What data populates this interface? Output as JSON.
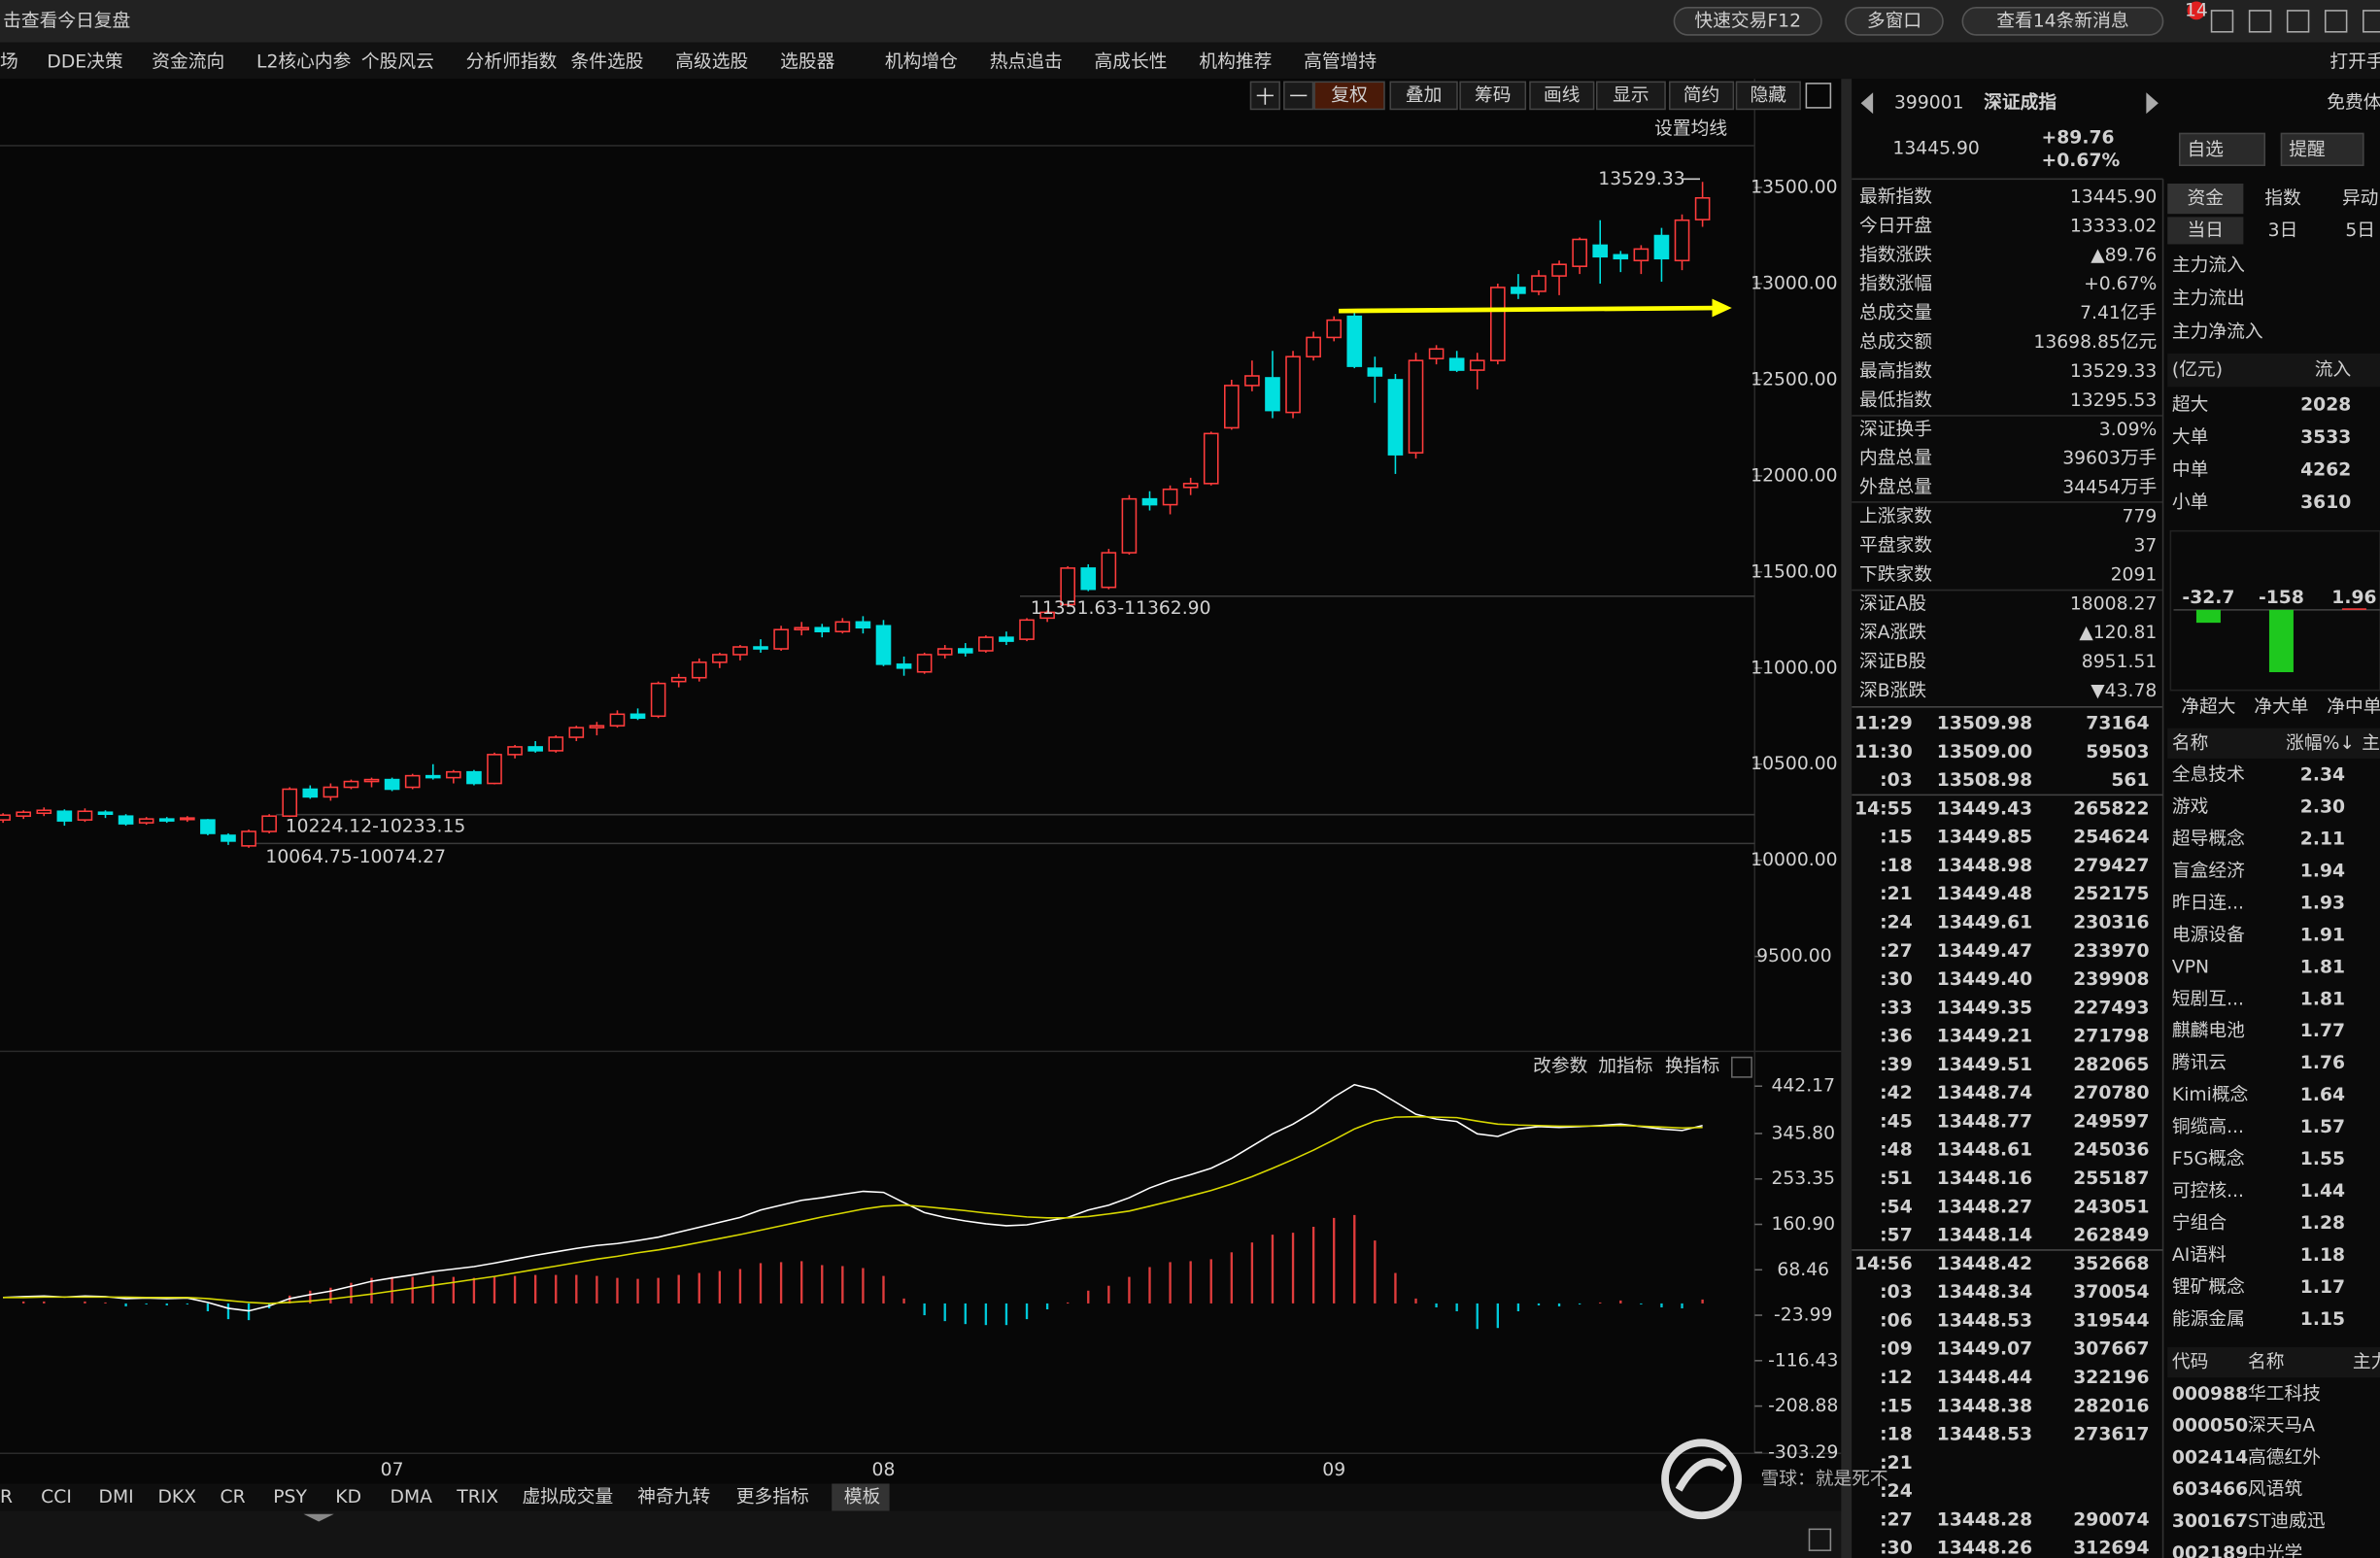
{
  "top_bar": {
    "review": "击查看今日复盘",
    "buttons": [
      "快速交易F12",
      "多窗口",
      "查看14条新消息"
    ],
    "badge": "14"
  },
  "menu": {
    "items": [
      "场",
      "DDE决策",
      "资金流向",
      "L2核心内参",
      "个股风云",
      "分析师指数",
      "条件选股",
      "高级选股",
      "选股器",
      "机构增仓",
      "热点追击",
      "高成长性",
      "机构推荐",
      "高管增持"
    ],
    "right": "打开手"
  },
  "chart_toolbar": {
    "buttons": [
      "复权",
      "叠加",
      "筹码",
      "画线",
      "显示",
      "简约",
      "隐藏"
    ],
    "ma_setting": "设置均线"
  },
  "chart_data": [
    {
      "type": "candlestick",
      "up_color": "#ff3c3c",
      "down_color": "#00e0e0",
      "categories": [
        null,
        null,
        null,
        null,
        null,
        null,
        null,
        null,
        null,
        null,
        null,
        null,
        null,
        null,
        null,
        null,
        null,
        null,
        null,
        "07",
        null,
        null,
        null,
        null,
        null,
        null,
        null,
        null,
        null,
        null,
        null,
        null,
        null,
        null,
        null,
        null,
        null,
        null,
        null,
        null,
        null,
        null,
        null,
        "08",
        null,
        null,
        null,
        null,
        null,
        null,
        null,
        null,
        null,
        null,
        null,
        null,
        null,
        null,
        null,
        null,
        null,
        null,
        null,
        null,
        null,
        "09",
        null,
        null,
        null,
        null,
        null,
        null,
        null,
        null,
        null,
        null,
        null,
        null,
        null,
        null,
        null,
        null,
        null,
        null
      ],
      "open": [
        10210,
        10230,
        10245,
        10255,
        10210,
        10250,
        10230,
        10195,
        10215,
        10215,
        10210,
        10130,
        10075,
        10150,
        10230,
        10370,
        10330,
        10380,
        10410,
        10420,
        10380,
        10440,
        10430,
        10460,
        10400,
        10550,
        10590,
        10570,
        10640,
        10690,
        10700,
        10760,
        10750,
        10930,
        10950,
        11030,
        11070,
        11110,
        11100,
        11200,
        11210,
        11190,
        11240,
        11220,
        11020,
        10980,
        11070,
        11100,
        11090,
        11160,
        11150,
        11260,
        11330,
        11520,
        11420,
        11600,
        11880,
        11850,
        11940,
        11960,
        12250,
        12470,
        12510,
        12330,
        12620,
        12720,
        12830,
        12560,
        12500,
        12120,
        12610,
        12610,
        12550,
        12600,
        12980,
        12960,
        13040,
        13090,
        13200,
        13150,
        13120,
        13250,
        13120,
        13333.02
      ],
      "high": [
        10245,
        10260,
        10275,
        10265,
        10270,
        10260,
        10240,
        10225,
        10225,
        10230,
        10215,
        10140,
        10160,
        10240,
        10380,
        10390,
        10400,
        10420,
        10430,
        10430,
        10450,
        10500,
        10470,
        10470,
        10560,
        10600,
        10620,
        10650,
        10700,
        10720,
        10780,
        10790,
        10930,
        10970,
        11050,
        11080,
        11120,
        11150,
        11220,
        11240,
        11230,
        11260,
        11270,
        11250,
        11060,
        11080,
        11120,
        11130,
        11170,
        11190,
        11260,
        11300,
        11530,
        11540,
        11620,
        11900,
        11920,
        11950,
        11990,
        12230,
        12500,
        12600,
        12650,
        12650,
        12750,
        12830,
        12860,
        12620,
        12530,
        12640,
        12680,
        12650,
        12640,
        13000,
        13050,
        13070,
        13120,
        13240,
        13330,
        13170,
        13200,
        13290,
        13360,
        13529.33
      ],
      "low": [
        10195,
        10215,
        10230,
        10180,
        10200,
        10220,
        10180,
        10185,
        10195,
        10200,
        10130,
        10080,
        10065,
        10140,
        10225,
        10320,
        10310,
        10370,
        10380,
        10360,
        10370,
        10420,
        10400,
        10390,
        10395,
        10530,
        10560,
        10560,
        10620,
        10650,
        10690,
        10730,
        10740,
        10900,
        10930,
        11000,
        11040,
        11080,
        11090,
        11170,
        11160,
        11180,
        11180,
        11010,
        10960,
        10970,
        11050,
        11060,
        11080,
        11120,
        11140,
        11240,
        11320,
        11400,
        11410,
        11590,
        11820,
        11800,
        11900,
        11950,
        12240,
        12440,
        12300,
        12300,
        12600,
        12700,
        12560,
        12380,
        12010,
        12090,
        12580,
        12540,
        12450,
        12580,
        12920,
        12940,
        12940,
        13050,
        13000,
        13060,
        13050,
        13010,
        13070,
        13295.53
      ],
      "close": [
        10235,
        10250,
        10260,
        10205,
        10255,
        10240,
        10190,
        10215,
        10205,
        10220,
        10140,
        10100,
        10150,
        10230,
        10370,
        10330,
        10380,
        10410,
        10420,
        10370,
        10440,
        10430,
        10460,
        10400,
        10550,
        10590,
        10570,
        10640,
        10690,
        10700,
        10760,
        10740,
        10920,
        10950,
        11030,
        11070,
        11110,
        11100,
        11200,
        11210,
        11190,
        11240,
        11210,
        11020,
        11000,
        11070,
        11100,
        11080,
        11160,
        11140,
        11250,
        11290,
        11520,
        11410,
        11600,
        11880,
        11850,
        11930,
        11960,
        12220,
        12470,
        12520,
        12340,
        12620,
        12720,
        12810,
        12570,
        12520,
        12110,
        12600,
        12660,
        12550,
        12600,
        12980,
        12950,
        13040,
        13100,
        13230,
        13140,
        13130,
        13180,
        13130,
        13330,
        13445.9
      ],
      "ylim": [
        9030,
        13710
      ],
      "yticks": [
        {
          "value": 13500,
          "label": "13500.00"
        },
        {
          "value": 13000,
          "label": "13000.00"
        },
        {
          "value": 12500,
          "label": "12500.00"
        },
        {
          "value": 12000,
          "label": "12000.00"
        },
        {
          "value": 11500,
          "label": "11500.00"
        },
        {
          "value": 11000,
          "label": "11000.00"
        },
        {
          "value": 10500,
          "label": "10500.00"
        },
        {
          "value": 10000,
          "label": "10000.00"
        },
        {
          "value": 9500,
          "label": "9500.00"
        }
      ],
      "annotations": [
        "13529.33",
        "11351.63-11362.90",
        "10224.12-10233.15",
        "10064.75-10074.27"
      ]
    },
    {
      "type": "macd",
      "up_color": "#e03c3c",
      "down_color": "#00c8d8",
      "series": [
        {
          "color": "#ffffff",
          "values": [
            12,
            14,
            15,
            13,
            15,
            14,
            10,
            11,
            10,
            11,
            2,
            -10,
            -15,
            -5,
            10,
            18,
            25,
            35,
            45,
            52,
            58,
            65,
            70,
            75,
            82,
            90,
            98,
            105,
            112,
            118,
            122,
            128,
            135,
            145,
            155,
            165,
            175,
            190,
            200,
            210,
            215,
            222,
            228,
            226,
            205,
            185,
            175,
            168,
            162,
            158,
            160,
            168,
            175,
            190,
            200,
            215,
            235,
            250,
            262,
            275,
            295,
            320,
            345,
            365,
            390,
            420,
            445,
            435,
            410,
            385,
            375,
            370,
            345,
            340,
            355,
            360,
            358,
            360,
            362,
            365,
            360,
            355,
            352,
            362
          ]
        },
        {
          "color": "#d8d800",
          "values": [
            12,
            12,
            13,
            13,
            13,
            13,
            13,
            12,
            12,
            12,
            10,
            6,
            2,
            0,
            2,
            5,
            9,
            14,
            19,
            25,
            31,
            37,
            43,
            49,
            55,
            62,
            69,
            76,
            83,
            90,
            96,
            103,
            109,
            116,
            124,
            132,
            140,
            149,
            158,
            167,
            176,
            184,
            192,
            198,
            200,
            197,
            193,
            189,
            184,
            180,
            176,
            174,
            174,
            177,
            182,
            188,
            198,
            208,
            219,
            230,
            243,
            258,
            275,
            293,
            312,
            333,
            355,
            371,
            379,
            380,
            379,
            378,
            371,
            365,
            363,
            362,
            361,
            361,
            361,
            362,
            361,
            359,
            357,
            358
          ]
        }
      ],
      "histogram": [
        0,
        4,
        4,
        0,
        4,
        2,
        -6,
        -2,
        -4,
        -2,
        -16,
        -32,
        -34,
        -10,
        16,
        26,
        32,
        42,
        52,
        54,
        54,
        56,
        54,
        52,
        54,
        56,
        58,
        58,
        58,
        56,
        52,
        50,
        52,
        58,
        62,
        66,
        70,
        82,
        84,
        86,
        78,
        76,
        72,
        56,
        10,
        -24,
        -36,
        -42,
        -44,
        -44,
        -32,
        -12,
        2,
        26,
        36,
        54,
        74,
        84,
        86,
        90,
        104,
        124,
        140,
        144,
        156,
        174,
        180,
        128,
        62,
        10,
        -8,
        -16,
        -52,
        -50,
        -16,
        -4,
        -6,
        -2,
        2,
        6,
        -2,
        -8,
        -10,
        8
      ],
      "ylim": [
        -305,
        476
      ],
      "yticks": [
        442.17,
        {
          "value": 345.8,
          "label": "345.80"
        },
        253.35,
        {
          "value": 160.9,
          "label": "160.90"
        },
        68.46,
        -23.99,
        -116.43,
        -208.88,
        -303.29
      ]
    },
    {
      "type": "bar",
      "up_color": "#ff3c3c",
      "down_color": "#1ec81e",
      "categories": [
        "净超大",
        "净大单",
        "净中单"
      ],
      "values": [
        -32.7,
        -158,
        1.96
      ]
    }
  ],
  "indicator_toolbar": [
    "改参数",
    "加指标",
    "换指标"
  ],
  "indicator_tabs": [
    "R",
    "CCI",
    "DMI",
    "DKX",
    "CR",
    "PSY",
    "KD",
    "DMA",
    "TRIX",
    "虚拟成交量",
    "神奇九转",
    "更多指标",
    "模板"
  ],
  "quote": {
    "code": "399001",
    "name": "深证成指",
    "price": "13445.90",
    "change": "+89.76",
    "pct": "+0.67%",
    "buttons": [
      "自选",
      "提醒"
    ],
    "promo": "免费体",
    "rows": [
      {
        "label": "最新指数",
        "value": "13445.90",
        "color": "#ff3c3c"
      },
      {
        "label": "今日开盘",
        "value": "13333.02",
        "color": "#22d722"
      },
      {
        "label": "指数涨跌",
        "value": "▲89.76",
        "color": "#ff3c3c"
      },
      {
        "label": "指数涨幅",
        "value": "+0.67%",
        "color": "#ff3c3c"
      },
      {
        "label": "总成交量",
        "value": "7.41亿手",
        "color": "#e6e6e6"
      },
      {
        "label": "总成交额",
        "value": "13698.85亿元",
        "color": "#00c8ff"
      },
      {
        "label": "最高指数",
        "value": "13529.33",
        "color": "#ff3c3c"
      },
      {
        "label": "最低指数",
        "value": "13295.53",
        "color": "#22d722"
      },
      {
        "label": "深证换手",
        "value": "3.09%",
        "color": "#e6e6e6"
      },
      {
        "label": "内盘总量",
        "value": "39603万手",
        "color": "#22d722"
      },
      {
        "label": "外盘总量",
        "value": "34454万手",
        "color": "#ff3c3c"
      },
      {
        "label": "上涨家数",
        "value": "779",
        "color": "#ff3c3c"
      },
      {
        "label": "平盘家数",
        "value": "37",
        "color": "#e6e6e6"
      },
      {
        "label": "下跌家数",
        "value": "2091",
        "color": "#22d722"
      },
      {
        "label": "深证A股",
        "value": "18008.27",
        "color": "#ff3c3c"
      },
      {
        "label": "深A涨跌",
        "value": "▲120.81",
        "color": "#ff3c3c"
      },
      {
        "label": "深证B股",
        "value": "8951.51",
        "color": "#22d722"
      },
      {
        "label": "深B涨跌",
        "value": "▼43.78",
        "color": "#22d722"
      }
    ]
  },
  "ticks": [
    {
      "time": "11:29",
      "price": "13509.98",
      "volume": "73164"
    },
    {
      "time": "11:30",
      "price": "13509.00",
      "volume": "59503"
    },
    {
      "time": ":03",
      "price": "13508.98",
      "volume": "561"
    },
    {
      "time": "14:55",
      "price": "13449.43",
      "volume": "265822"
    },
    {
      "time": ":15",
      "price": "13449.85",
      "volume": "254624"
    },
    {
      "time": ":18",
      "price": "13448.98",
      "volume": "279427"
    },
    {
      "time": ":21",
      "price": "13449.48",
      "volume": "252175"
    },
    {
      "time": ":24",
      "price": "13449.61",
      "volume": "230316"
    },
    {
      "time": ":27",
      "price": "13449.47",
      "volume": "233970"
    },
    {
      "time": ":30",
      "price": "13449.40",
      "volume": "239908"
    },
    {
      "time": ":33",
      "price": "13449.35",
      "volume": "227493"
    },
    {
      "time": ":36",
      "price": "13449.21",
      "volume": "271798"
    },
    {
      "time": ":39",
      "price": "13449.51",
      "volume": "282065"
    },
    {
      "time": ":42",
      "price": "13448.74",
      "volume": "270780"
    },
    {
      "time": ":45",
      "price": "13448.77",
      "volume": "249597"
    },
    {
      "time": ":48",
      "price": "13448.61",
      "volume": "245036"
    },
    {
      "time": ":51",
      "price": "13448.16",
      "volume": "255187"
    },
    {
      "time": ":54",
      "price": "13448.27",
      "volume": "243051"
    },
    {
      "time": ":57",
      "price": "13448.14",
      "volume": "262849"
    },
    {
      "time": "14:56",
      "price": "13448.42",
      "volume": "352668"
    },
    {
      "time": ":03",
      "price": "13448.34",
      "volume": "370054"
    },
    {
      "time": ":06",
      "price": "13448.53",
      "volume": "319544"
    },
    {
      "time": ":09",
      "price": "13449.07",
      "volume": "307667"
    },
    {
      "time": ":12",
      "price": "13448.44",
      "volume": "322196"
    },
    {
      "time": ":15",
      "price": "13448.38",
      "volume": "282016"
    },
    {
      "time": ":18",
      "price": "13448.53",
      "volume": "273617"
    },
    {
      "time": ":21"
    },
    {
      "time": ":24"
    },
    {
      "time": ":27",
      "price": "13448.28",
      "volume": "290074"
    },
    {
      "time": ":30",
      "price": "13448.26",
      "volume": "312694"
    }
  ],
  "money_flow": {
    "tabs": [
      "资金",
      "指数",
      "异动"
    ],
    "periods": [
      "当日",
      "3日",
      "5日"
    ],
    "labels": [
      "主力流入",
      "主力流出",
      "主力净流入"
    ],
    "unit": "(亿元)",
    "column": "流入",
    "rows": [
      {
        "label": "超大",
        "value": "2028"
      },
      {
        "label": "大单",
        "value": "3533"
      },
      {
        "label": "中单",
        "value": "4262"
      },
      {
        "label": "小单",
        "value": "3610"
      }
    ]
  },
  "sectors": {
    "header": [
      "名称",
      "涨幅%↓",
      "主"
    ],
    "rows": [
      {
        "name": "全息技术",
        "pct": "2.34"
      },
      {
        "name": "游戏",
        "pct": "2.30"
      },
      {
        "name": "超导概念",
        "pct": "2.11"
      },
      {
        "name": "盲盒经济",
        "pct": "1.94"
      },
      {
        "name": "昨日连...",
        "pct": "1.93"
      },
      {
        "name": "电源设备",
        "pct": "1.91"
      },
      {
        "name": "VPN",
        "pct": "1.81"
      },
      {
        "name": "短剧互...",
        "pct": "1.81"
      },
      {
        "name": "麒麟电池",
        "pct": "1.77"
      },
      {
        "name": "腾讯云",
        "pct": "1.76"
      },
      {
        "name": "Kimi概念",
        "pct": "1.64"
      },
      {
        "name": "铜缆高...",
        "pct": "1.57"
      },
      {
        "name": "F5G概念",
        "pct": "1.55"
      },
      {
        "name": "可控核...",
        "pct": "1.44"
      },
      {
        "name": "宁组合",
        "pct": "1.28"
      },
      {
        "name": "AI语料",
        "pct": "1.18"
      },
      {
        "name": "锂矿概念",
        "pct": "1.17"
      },
      {
        "name": "能源金属",
        "pct": "1.15"
      }
    ]
  },
  "stocks": {
    "header": [
      "代码",
      "名称",
      "主力"
    ],
    "rows": [
      {
        "code": "000988",
        "name": "华工科技"
      },
      {
        "code": "000050",
        "name": "深天马A"
      },
      {
        "code": "002414",
        "name": "高德红外"
      },
      {
        "code": "603466",
        "name": "风语筑"
      },
      {
        "code": "300167",
        "name": "ST迪威迅"
      },
      {
        "code": "002189",
        "name": "中光学"
      }
    ]
  },
  "watermark": "雪球：就是死不"
}
